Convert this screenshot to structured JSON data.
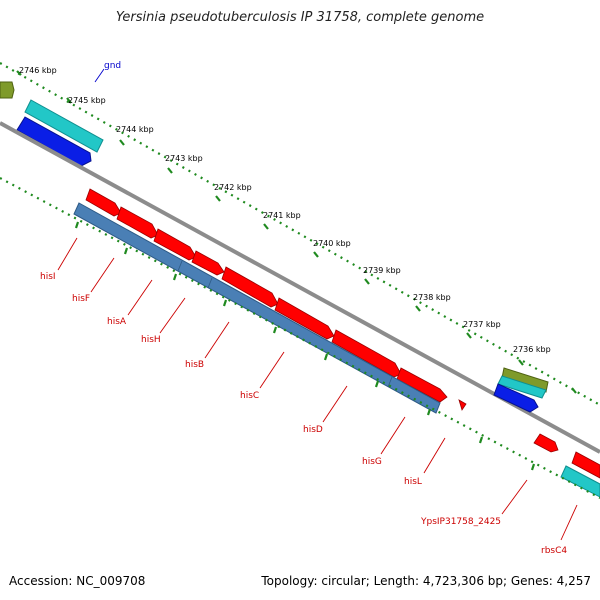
{
  "title": "Yersinia pseudotuberculosis IP 31758, complete genome",
  "footer": {
    "accession": "Accession: NC_009708",
    "summary": "Topology: circular; Length: 4,723,306 bp; Genes: 4,257"
  },
  "colors": {
    "backbone": "#8c8c8c",
    "tick": "#1f8a1f",
    "gene_forward": "#ff0000",
    "cds_reverse": "#4a7fb5",
    "rrna_like": "#22c7c7",
    "blue_feature": "#0a1ee6",
    "olive_feature": "#7f9a2a",
    "label_red": "#cc0000",
    "label_blue": "#0000cc"
  },
  "coordinate_labels": [
    "2746 kbp",
    "2745 kbp",
    "2744 kbp",
    "2743 kbp",
    "2742 kbp",
    "2741 kbp",
    "2740 kbp",
    "2739 kbp",
    "2738 kbp",
    "2737 kbp",
    "2736 kbp"
  ],
  "gene_labels": [
    {
      "name": "gnd",
      "color": "blue"
    },
    {
      "name": "hisI",
      "color": "red"
    },
    {
      "name": "hisF",
      "color": "red"
    },
    {
      "name": "hisA",
      "color": "red"
    },
    {
      "name": "hisH",
      "color": "red"
    },
    {
      "name": "hisB",
      "color": "red"
    },
    {
      "name": "hisC",
      "color": "red"
    },
    {
      "name": "hisD",
      "color": "red"
    },
    {
      "name": "hisG",
      "color": "red"
    },
    {
      "name": "hisL",
      "color": "red"
    },
    {
      "name": "YpsIP31758_2425",
      "color": "red"
    },
    {
      "name": "rbsC4",
      "color": "red"
    }
  ]
}
